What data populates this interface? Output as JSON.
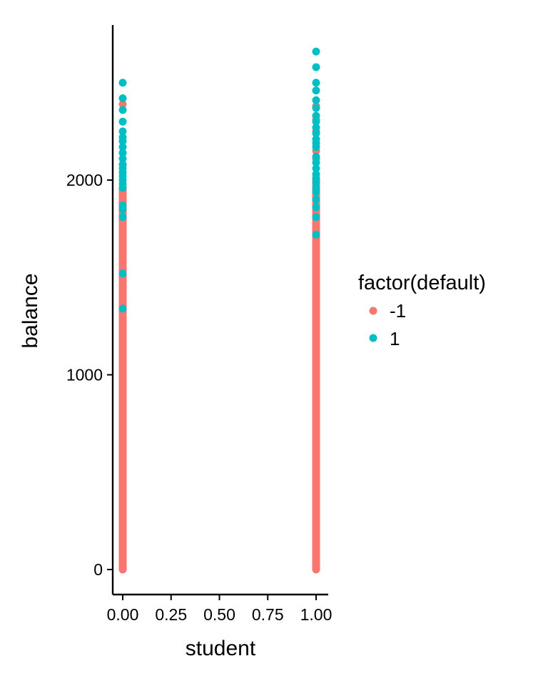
{
  "chart_data": {
    "type": "scatter",
    "title": "",
    "xlabel": "student",
    "ylabel": "balance",
    "xlim": [
      -0.05,
      1.05
    ],
    "ylim": [
      -130,
      2800
    ],
    "x_ticks": [
      {
        "value": 0.0,
        "label": "0.00"
      },
      {
        "value": 0.25,
        "label": "0.25"
      },
      {
        "value": 0.5,
        "label": "0.50"
      },
      {
        "value": 0.75,
        "label": "0.75"
      },
      {
        "value": 1.0,
        "label": "1.00"
      }
    ],
    "y_ticks": [
      {
        "value": 0,
        "label": "0"
      },
      {
        "value": 1000,
        "label": "1000"
      },
      {
        "value": 2000,
        "label": "2000"
      }
    ],
    "grid": false,
    "legend": {
      "title": "factor(default)",
      "position": "right",
      "entries": [
        {
          "label": "-1",
          "color": "#F8766D"
        },
        {
          "label": "1",
          "color": "#00BFC4"
        }
      ]
    },
    "series": [
      {
        "name": "-1",
        "color": "#F8766D",
        "segments": [
          {
            "x": 0,
            "y_range": [
              0,
              1950
            ]
          },
          {
            "x": 1,
            "y_range": [
              0,
              2000
            ]
          }
        ],
        "points": [
          {
            "x": 0,
            "y": 2390
          },
          {
            "x": 0,
            "y": 2140
          },
          {
            "x": 0,
            "y": 2080
          },
          {
            "x": 0,
            "y": 1900
          },
          {
            "x": 0,
            "y": 1850
          },
          {
            "x": 0,
            "y": 1780
          },
          {
            "x": 0,
            "y": 1750
          },
          {
            "x": 0,
            "y": 1700
          },
          {
            "x": 1,
            "y": 2380
          },
          {
            "x": 1,
            "y": 2310
          },
          {
            "x": 1,
            "y": 2250
          },
          {
            "x": 1,
            "y": 2150
          },
          {
            "x": 1,
            "y": 2110
          },
          {
            "x": 1,
            "y": 1980
          },
          {
            "x": 1,
            "y": 1930
          },
          {
            "x": 1,
            "y": 1880
          },
          {
            "x": 1,
            "y": 1820
          },
          {
            "x": 1,
            "y": 1750
          }
        ]
      },
      {
        "name": "1",
        "color": "#00BFC4",
        "points": [
          {
            "x": 0,
            "y": 2500
          },
          {
            "x": 0,
            "y": 2420
          },
          {
            "x": 0,
            "y": 2360
          },
          {
            "x": 0,
            "y": 2300
          },
          {
            "x": 0,
            "y": 2250
          },
          {
            "x": 0,
            "y": 2220
          },
          {
            "x": 0,
            "y": 2200
          },
          {
            "x": 0,
            "y": 2170
          },
          {
            "x": 0,
            "y": 2140
          },
          {
            "x": 0,
            "y": 2110
          },
          {
            "x": 0,
            "y": 2080
          },
          {
            "x": 0,
            "y": 2060
          },
          {
            "x": 0,
            "y": 2040
          },
          {
            "x": 0,
            "y": 2020
          },
          {
            "x": 0,
            "y": 2000
          },
          {
            "x": 0,
            "y": 1980
          },
          {
            "x": 0,
            "y": 1960
          },
          {
            "x": 0,
            "y": 1870
          },
          {
            "x": 0,
            "y": 1850
          },
          {
            "x": 0,
            "y": 1810
          },
          {
            "x": 0,
            "y": 1520
          },
          {
            "x": 0,
            "y": 1340
          },
          {
            "x": 1,
            "y": 2660
          },
          {
            "x": 1,
            "y": 2580
          },
          {
            "x": 1,
            "y": 2500
          },
          {
            "x": 1,
            "y": 2460
          },
          {
            "x": 1,
            "y": 2410
          },
          {
            "x": 1,
            "y": 2370
          },
          {
            "x": 1,
            "y": 2330
          },
          {
            "x": 1,
            "y": 2300
          },
          {
            "x": 1,
            "y": 2270
          },
          {
            "x": 1,
            "y": 2240
          },
          {
            "x": 1,
            "y": 2210
          },
          {
            "x": 1,
            "y": 2190
          },
          {
            "x": 1,
            "y": 2170
          },
          {
            "x": 1,
            "y": 2120
          },
          {
            "x": 1,
            "y": 2090
          },
          {
            "x": 1,
            "y": 2060
          },
          {
            "x": 1,
            "y": 2030
          },
          {
            "x": 1,
            "y": 2010
          },
          {
            "x": 1,
            "y": 1990
          },
          {
            "x": 1,
            "y": 1960
          },
          {
            "x": 1,
            "y": 1940
          },
          {
            "x": 1,
            "y": 1900
          },
          {
            "x": 1,
            "y": 1860
          },
          {
            "x": 1,
            "y": 1810
          },
          {
            "x": 1,
            "y": 1720
          }
        ]
      }
    ]
  }
}
